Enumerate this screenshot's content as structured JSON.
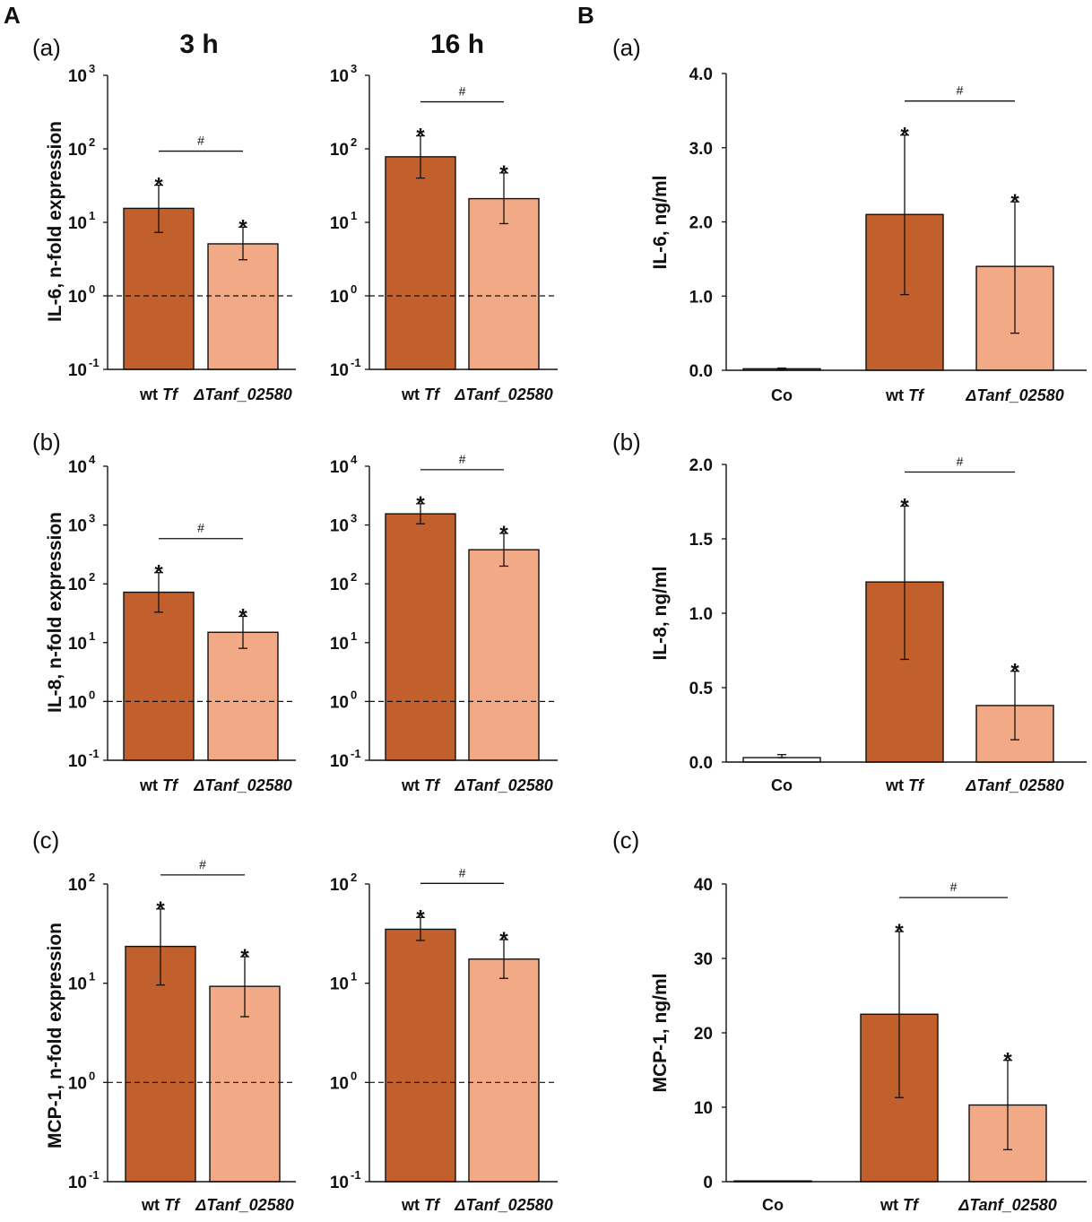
{
  "panel_labels": {
    "A": "A",
    "B": "B"
  },
  "column_headers": {
    "h3": "3 h",
    "h16": "16 h"
  },
  "colors": {
    "wt": "#C2602D",
    "mutant": "#F2A986",
    "axis": "#111111"
  },
  "chart_data": [
    {
      "id": "A-a-3h",
      "type": "bar",
      "scale": "log",
      "sublabel": "(a)",
      "ylabel": "IL-6, n-fold expression",
      "ylim_exp": [
        -1,
        3
      ],
      "categories": [
        {
          "plain": "wt ",
          "italic": "Tf"
        },
        {
          "plain": "",
          "italic": "ΔTanf_02580"
        }
      ],
      "values": [
        15.5,
        5.1
      ],
      "err_high": [
        32,
        8.6
      ],
      "err_low": [
        7.3,
        3.1
      ],
      "stars": [
        "*",
        "*"
      ],
      "sig": "#",
      "reference_line": 1
    },
    {
      "id": "A-a-16h",
      "type": "bar",
      "scale": "log",
      "sublabel": "",
      "ylabel": "",
      "ylim_exp": [
        -1,
        3
      ],
      "categories": [
        {
          "plain": "wt ",
          "italic": "Tf"
        },
        {
          "plain": "",
          "italic": "ΔTanf_02580"
        }
      ],
      "values": [
        78,
        21
      ],
      "err_high": [
        150,
        47
      ],
      "err_low": [
        40,
        9.6
      ],
      "stars": [
        "*",
        "*"
      ],
      "sig": "#",
      "reference_line": 1
    },
    {
      "id": "A-b-3h",
      "type": "bar",
      "scale": "log",
      "sublabel": "(b)",
      "ylabel": "IL-8, n-fold expression",
      "ylim_exp": [
        -1,
        4
      ],
      "categories": [
        {
          "plain": "wt ",
          "italic": "Tf"
        },
        {
          "plain": "",
          "italic": "ΔTanf_02580"
        }
      ],
      "values": [
        72,
        15
      ],
      "err_high": [
        155,
        28
      ],
      "err_low": [
        33,
        8
      ],
      "stars": [
        "*",
        "*"
      ],
      "sig": "#",
      "reference_line": 1
    },
    {
      "id": "A-b-16h",
      "type": "bar",
      "scale": "log",
      "sublabel": "",
      "ylabel": "",
      "ylim_exp": [
        -1,
        4
      ],
      "categories": [
        {
          "plain": "wt ",
          "italic": "Tf"
        },
        {
          "plain": "",
          "italic": "ΔTanf_02580"
        }
      ],
      "values": [
        1550,
        380
      ],
      "err_high": [
        2300,
        720
      ],
      "err_low": [
        1050,
        200
      ],
      "stars": [
        "*",
        "*"
      ],
      "sig": "#",
      "reference_line": 1
    },
    {
      "id": "A-c-3h",
      "type": "bar",
      "scale": "log",
      "sublabel": "(c)",
      "ylabel": "MCP-1, n-fold expression",
      "ylim_exp": [
        -1,
        2
      ],
      "categories": [
        {
          "plain": "wt ",
          "italic": "Tf"
        },
        {
          "plain": "",
          "italic": "ΔTanf_02580"
        }
      ],
      "values": [
        23.5,
        9.3
      ],
      "err_high": [
        56,
        18.5
      ],
      "err_low": [
        9.6,
        4.6
      ],
      "stars": [
        "*",
        "*"
      ],
      "sig": "#",
      "reference_line": 1
    },
    {
      "id": "A-c-16h",
      "type": "bar",
      "scale": "log",
      "sublabel": "",
      "ylabel": "",
      "ylim_exp": [
        -1,
        2
      ],
      "categories": [
        {
          "plain": "wt ",
          "italic": "Tf"
        },
        {
          "plain": "",
          "italic": "ΔTanf_02580"
        }
      ],
      "values": [
        35,
        17.5
      ],
      "err_high": [
        46,
        27.5
      ],
      "err_low": [
        27,
        11.2
      ],
      "stars": [
        "*",
        "*"
      ],
      "sig": "#",
      "reference_line": 1
    },
    {
      "id": "B-a",
      "type": "bar",
      "scale": "linear",
      "sublabel": "(a)",
      "ylabel": "IL-6, ng/ml",
      "ylim": [
        0,
        4
      ],
      "ticks": [
        "0.0",
        "1.0",
        "2.0",
        "3.0",
        "4.0"
      ],
      "tick_values": [
        0,
        1,
        2,
        3,
        4
      ],
      "categories": [
        {
          "plain": "Co",
          "italic": ""
        },
        {
          "plain": "wt ",
          "italic": "Tf"
        },
        {
          "plain": "",
          "italic": "ΔTanf_02580"
        }
      ],
      "values": [
        0.02,
        2.1,
        1.4
      ],
      "err_high": [
        0.03,
        3.17,
        2.27
      ],
      "err_low": [
        0.01,
        1.02,
        0.5
      ],
      "stars": [
        "",
        "*",
        "*"
      ],
      "sig": "#"
    },
    {
      "id": "B-b",
      "type": "bar",
      "scale": "linear",
      "sublabel": "(b)",
      "ylabel": "IL-8, ng/ml",
      "ylim": [
        0,
        2
      ],
      "ticks": [
        "0.0",
        "0.5",
        "1.0",
        "1.5",
        "2.0"
      ],
      "tick_values": [
        0,
        0.5,
        1,
        1.5,
        2
      ],
      "categories": [
        {
          "plain": "Co",
          "italic": ""
        },
        {
          "plain": "wt ",
          "italic": "Tf"
        },
        {
          "plain": "",
          "italic": "ΔTanf_02580"
        }
      ],
      "values": [
        0.03,
        1.21,
        0.38
      ],
      "err_high": [
        0.05,
        1.72,
        0.61
      ],
      "err_low": [
        0.03,
        0.69,
        0.15
      ],
      "stars": [
        "",
        "*",
        "*"
      ],
      "sig": "#"
    },
    {
      "id": "B-c",
      "type": "bar",
      "scale": "linear",
      "sublabel": "(c)",
      "ylabel": "MCP-1, ng/ml",
      "ylim": [
        0,
        40
      ],
      "ticks": [
        "0",
        "10",
        "20",
        "30",
        "40"
      ],
      "tick_values": [
        0,
        10,
        20,
        30,
        40
      ],
      "categories": [
        {
          "plain": "Co",
          "italic": ""
        },
        {
          "plain": "wt ",
          "italic": "Tf"
        },
        {
          "plain": "",
          "italic": "ΔTanf_02580"
        }
      ],
      "values": [
        0.1,
        22.5,
        10.3
      ],
      "err_high": [
        0.1,
        33.6,
        16.3
      ],
      "err_low": [
        0.1,
        11.3,
        4.3
      ],
      "stars": [
        "",
        "*",
        "*"
      ],
      "sig": "#"
    }
  ]
}
